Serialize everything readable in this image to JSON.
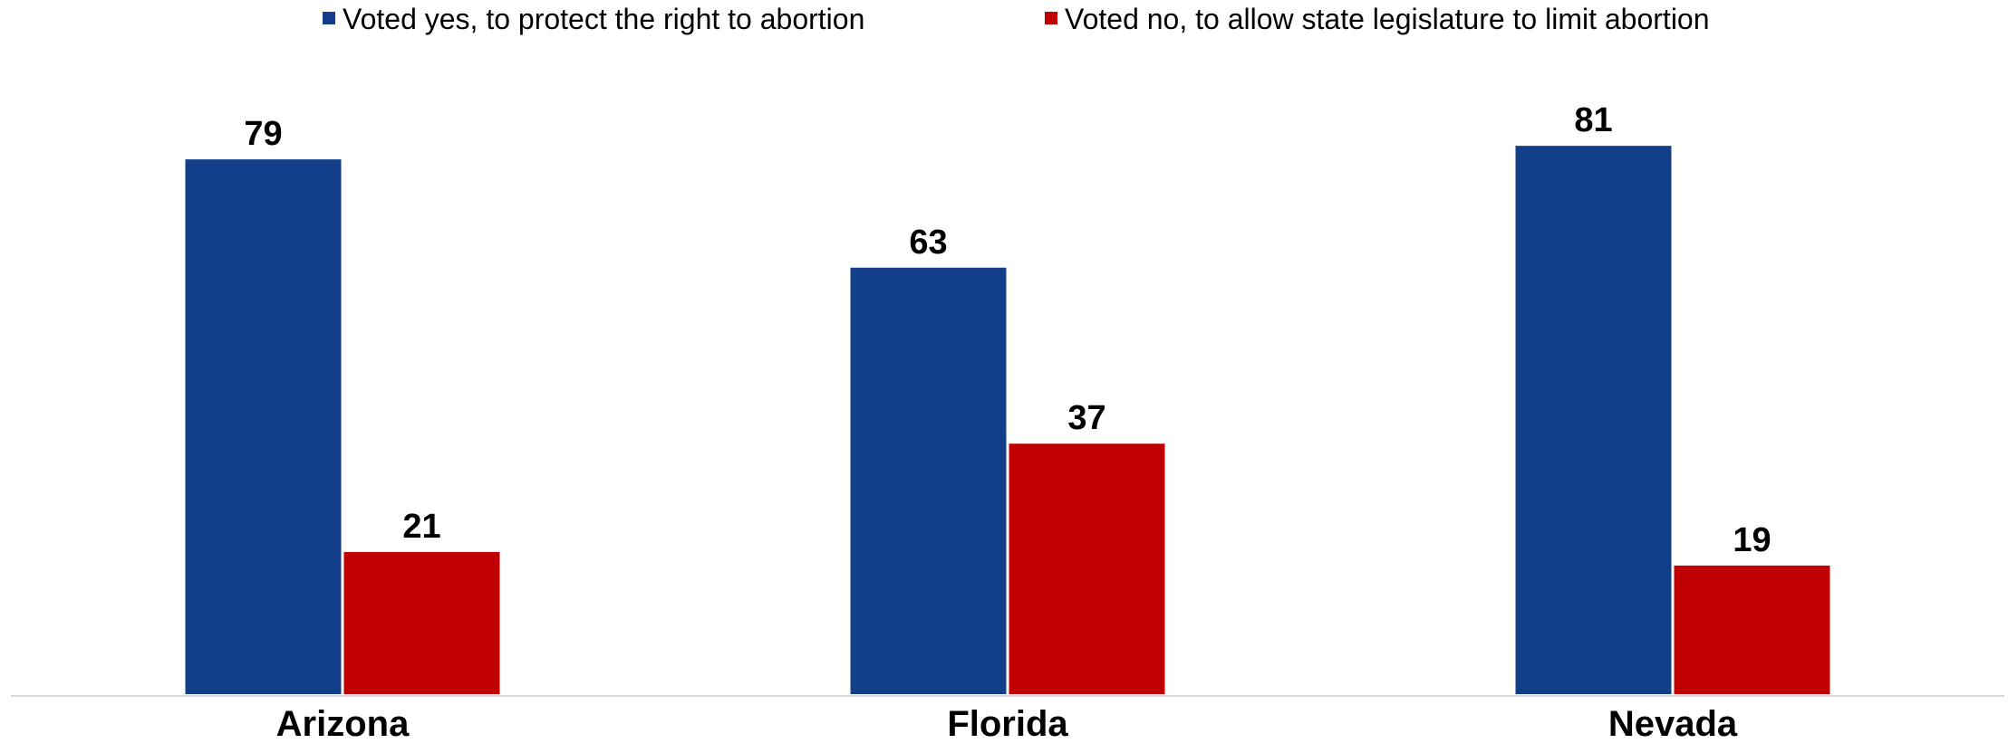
{
  "chart_data": {
    "type": "bar",
    "title": "",
    "xlabel": "",
    "ylabel": "",
    "categories": [
      "Arizona",
      "Florida",
      "Nevada"
    ],
    "series": [
      {
        "name": "Voted yes, to protect the right to abortion",
        "values": [
          79,
          63,
          81
        ],
        "color": "#133F8A"
      },
      {
        "name": "Voted no, to allow state legislature to limit abortion",
        "values": [
          21,
          37,
          19
        ],
        "color": "#C00000"
      }
    ],
    "ylim": [
      0,
      100
    ],
    "grid": false,
    "legend_position": "top",
    "data_labels": true
  }
}
